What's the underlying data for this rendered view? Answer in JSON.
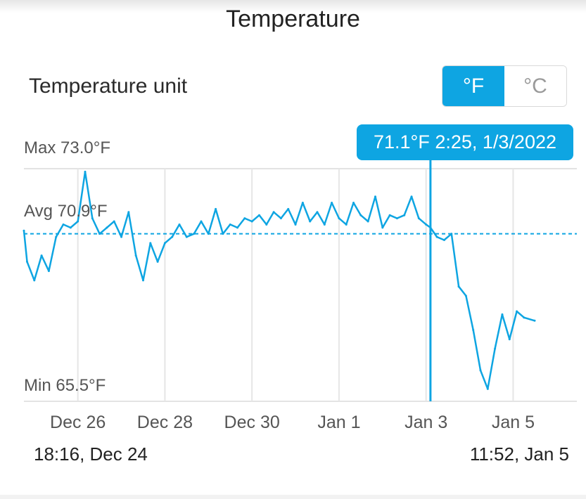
{
  "header": {
    "title": "Temperature"
  },
  "unit_setting": {
    "label": "Temperature unit",
    "options": [
      "°F",
      "°C"
    ],
    "selected": "°F",
    "accent_color": "#0ea5e2"
  },
  "stats": {
    "max": "Max 73.0°F",
    "avg": "Avg 70.9°F",
    "min": "Min 65.5°F"
  },
  "tooltip": {
    "text": "71.1°F 2:25,  1/3/2022"
  },
  "range": {
    "start": "18:16,  Dec 24",
    "end": "11:52,  Jan 5"
  },
  "chart_data": {
    "type": "line",
    "unit": "°F",
    "x_ticks": [
      "Dec 26",
      "Dec 28",
      "Dec 30",
      "Jan 1",
      "Jan 3",
      "Jan 5"
    ],
    "x_range": [
      "2021-12-24 18:16",
      "2022-01-05 11:52"
    ],
    "ylim": [
      65.5,
      73.0
    ],
    "average": 70.9,
    "cursor": {
      "time": "2022-01-03 02:25",
      "value": 71.1
    },
    "line_color": "#0ea5e2",
    "grid": true,
    "series": [
      {
        "x": [
          "2021-12-24 18:16",
          "2021-12-24 20:00",
          "2021-12-25 00:00",
          "2021-12-25 04:00",
          "2021-12-25 08:00",
          "2021-12-25 12:00",
          "2021-12-25 16:00",
          "2021-12-25 20:00",
          "2021-12-26 00:00",
          "2021-12-26 04:00",
          "2021-12-26 08:00",
          "2021-12-26 12:00",
          "2021-12-26 16:00",
          "2021-12-26 20:00",
          "2021-12-27 00:00",
          "2021-12-27 04:00",
          "2021-12-27 08:00",
          "2021-12-27 12:00",
          "2021-12-27 16:00",
          "2021-12-27 20:00",
          "2021-12-28 00:00",
          "2021-12-28 04:00",
          "2021-12-28 08:00",
          "2021-12-28 12:00",
          "2021-12-28 16:00",
          "2021-12-28 20:00",
          "2021-12-29 00:00",
          "2021-12-29 04:00",
          "2021-12-29 08:00",
          "2021-12-29 12:00",
          "2021-12-29 16:00",
          "2021-12-29 20:00",
          "2021-12-30 00:00",
          "2021-12-30 04:00",
          "2021-12-30 08:00",
          "2021-12-30 12:00",
          "2021-12-30 16:00",
          "2021-12-30 20:00",
          "2021-12-31 00:00",
          "2021-12-31 04:00",
          "2021-12-31 08:00",
          "2021-12-31 12:00",
          "2021-12-31 16:00",
          "2021-12-31 20:00",
          "2022-01-01 00:00",
          "2022-01-01 04:00",
          "2022-01-01 08:00",
          "2022-01-01 12:00",
          "2022-01-01 16:00",
          "2022-01-01 20:00",
          "2022-01-02 00:00",
          "2022-01-02 04:00",
          "2022-01-02 08:00",
          "2022-01-02 12:00",
          "2022-01-02 16:00",
          "2022-01-02 20:00",
          "2022-01-03 00:00",
          "2022-01-03 02:25",
          "2022-01-03 06:00",
          "2022-01-03 10:00",
          "2022-01-03 14:00",
          "2022-01-03 18:00",
          "2022-01-03 22:00",
          "2022-01-04 02:00",
          "2022-01-04 06:00",
          "2022-01-04 10:00",
          "2022-01-04 14:00",
          "2022-01-04 18:00",
          "2022-01-04 22:00",
          "2022-01-05 02:00",
          "2022-01-05 06:00",
          "2022-01-05 11:52"
        ],
        "y": [
          71.0,
          70.0,
          69.4,
          70.2,
          69.7,
          70.8,
          71.2,
          71.1,
          71.3,
          72.9,
          71.4,
          70.9,
          71.1,
          71.3,
          70.8,
          71.6,
          70.2,
          69.4,
          70.6,
          70.0,
          70.6,
          70.8,
          71.2,
          70.8,
          70.9,
          71.3,
          70.9,
          71.7,
          70.9,
          71.2,
          71.1,
          71.4,
          71.3,
          71.5,
          71.2,
          71.6,
          71.4,
          71.7,
          71.2,
          71.9,
          71.3,
          71.6,
          71.2,
          71.9,
          71.4,
          71.2,
          71.9,
          71.5,
          71.3,
          72.1,
          71.1,
          71.5,
          71.4,
          71.5,
          72.1,
          71.4,
          71.2,
          71.1,
          70.8,
          70.7,
          70.9,
          69.2,
          68.9,
          67.8,
          66.5,
          65.9,
          67.2,
          68.3,
          67.5,
          68.4,
          68.2,
          68.1
        ]
      }
    ]
  }
}
